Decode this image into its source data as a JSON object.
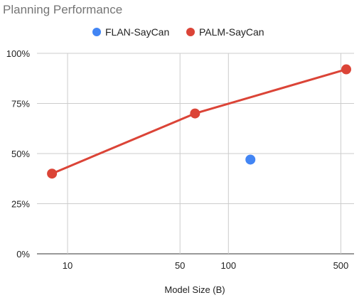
{
  "chart_data": {
    "type": "scatter",
    "title": "Planning Performance",
    "xlabel": "Model Size (B)",
    "ylabel": "",
    "x_scale": "log",
    "xlim": [
      7,
      540
    ],
    "ylim": [
      0,
      100
    ],
    "x_ticks": [
      10,
      50,
      100,
      500
    ],
    "x_tick_labels": [
      "10",
      "50",
      "100",
      "500"
    ],
    "y_ticks": [
      0,
      25,
      50,
      75,
      100
    ],
    "y_tick_labels": [
      "0%",
      "25%",
      "50%",
      "75%",
      "100%"
    ],
    "grid": true,
    "legend_position": "top",
    "series": [
      {
        "name": "FLAN-SayCan",
        "color": "#4285f4",
        "line": false,
        "points": [
          {
            "x": 137,
            "y": 47
          }
        ]
      },
      {
        "name": "PALM-SayCan",
        "color": "#db4437",
        "line": true,
        "points": [
          {
            "x": 8,
            "y": 40
          },
          {
            "x": 62,
            "y": 70
          },
          {
            "x": 540,
            "y": 92
          }
        ]
      }
    ]
  }
}
